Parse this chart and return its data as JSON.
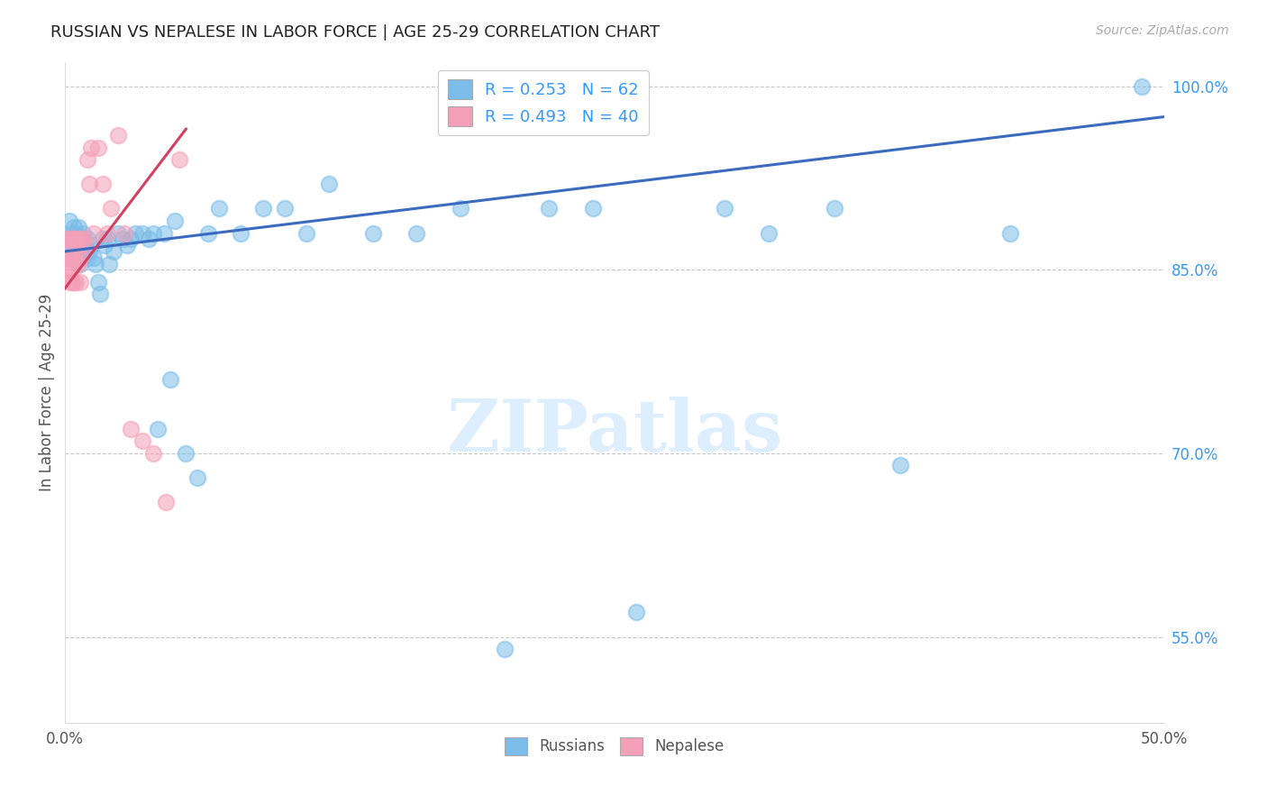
{
  "title": "RUSSIAN VS NEPALESE IN LABOR FORCE | AGE 25-29 CORRELATION CHART",
  "source": "Source: ZipAtlas.com",
  "ylabel": "In Labor Force | Age 25-29",
  "xlim": [
    0.0,
    0.5
  ],
  "ylim": [
    0.48,
    1.02
  ],
  "ytick_positions": [
    0.55,
    0.7,
    0.85,
    1.0
  ],
  "ytick_labels": [
    "55.0%",
    "70.0%",
    "85.0%",
    "100.0%"
  ],
  "russian_R": 0.253,
  "russian_N": 62,
  "nepalese_R": 0.493,
  "nepalese_N": 40,
  "russian_color": "#7bbde8",
  "nepalese_color": "#f4a0b8",
  "trend_russian_color": "#3a6bbf",
  "trend_nepalese_color": "#d44060",
  "watermark": "ZIPatlas",
  "watermark_color": "#ddeeff",
  "russians_x": [
    0.001,
    0.002,
    0.003,
    0.003,
    0.004,
    0.004,
    0.005,
    0.005,
    0.006,
    0.006,
    0.007,
    0.007,
    0.008,
    0.008,
    0.009,
    0.01,
    0.01,
    0.011,
    0.012,
    0.013,
    0.014,
    0.015,
    0.016,
    0.017,
    0.018,
    0.019,
    0.02,
    0.022,
    0.024,
    0.026,
    0.028,
    0.03,
    0.032,
    0.035,
    0.038,
    0.04,
    0.042,
    0.045,
    0.048,
    0.05,
    0.055,
    0.06,
    0.065,
    0.07,
    0.08,
    0.09,
    0.1,
    0.11,
    0.12,
    0.14,
    0.16,
    0.18,
    0.2,
    0.22,
    0.24,
    0.26,
    0.3,
    0.32,
    0.35,
    0.38,
    0.43,
    0.49
  ],
  "russians_y": [
    0.875,
    0.89,
    0.88,
    0.87,
    0.885,
    0.87,
    0.88,
    0.865,
    0.885,
    0.86,
    0.875,
    0.855,
    0.88,
    0.865,
    0.87,
    0.875,
    0.86,
    0.865,
    0.87,
    0.86,
    0.855,
    0.84,
    0.83,
    0.875,
    0.87,
    0.875,
    0.855,
    0.865,
    0.88,
    0.875,
    0.87,
    0.875,
    0.88,
    0.88,
    0.875,
    0.88,
    0.72,
    0.88,
    0.76,
    0.89,
    0.7,
    0.68,
    0.88,
    0.9,
    0.88,
    0.9,
    0.9,
    0.88,
    0.92,
    0.88,
    0.88,
    0.9,
    0.54,
    0.9,
    0.9,
    0.57,
    0.9,
    0.88,
    0.9,
    0.69,
    0.88,
    1.0
  ],
  "nepalese_x": [
    0.001,
    0.001,
    0.001,
    0.001,
    0.002,
    0.002,
    0.002,
    0.002,
    0.003,
    0.003,
    0.003,
    0.003,
    0.004,
    0.004,
    0.004,
    0.005,
    0.005,
    0.005,
    0.006,
    0.006,
    0.007,
    0.007,
    0.007,
    0.008,
    0.009,
    0.01,
    0.011,
    0.012,
    0.013,
    0.015,
    0.017,
    0.019,
    0.021,
    0.024,
    0.027,
    0.03,
    0.035,
    0.04,
    0.046,
    0.052
  ],
  "nepalese_y": [
    0.875,
    0.87,
    0.86,
    0.85,
    0.875,
    0.86,
    0.85,
    0.84,
    0.875,
    0.86,
    0.85,
    0.84,
    0.875,
    0.86,
    0.84,
    0.875,
    0.86,
    0.84,
    0.875,
    0.855,
    0.875,
    0.86,
    0.84,
    0.875,
    0.87,
    0.94,
    0.92,
    0.95,
    0.88,
    0.95,
    0.92,
    0.88,
    0.9,
    0.96,
    0.88,
    0.72,
    0.71,
    0.7,
    0.66,
    0.94
  ]
}
